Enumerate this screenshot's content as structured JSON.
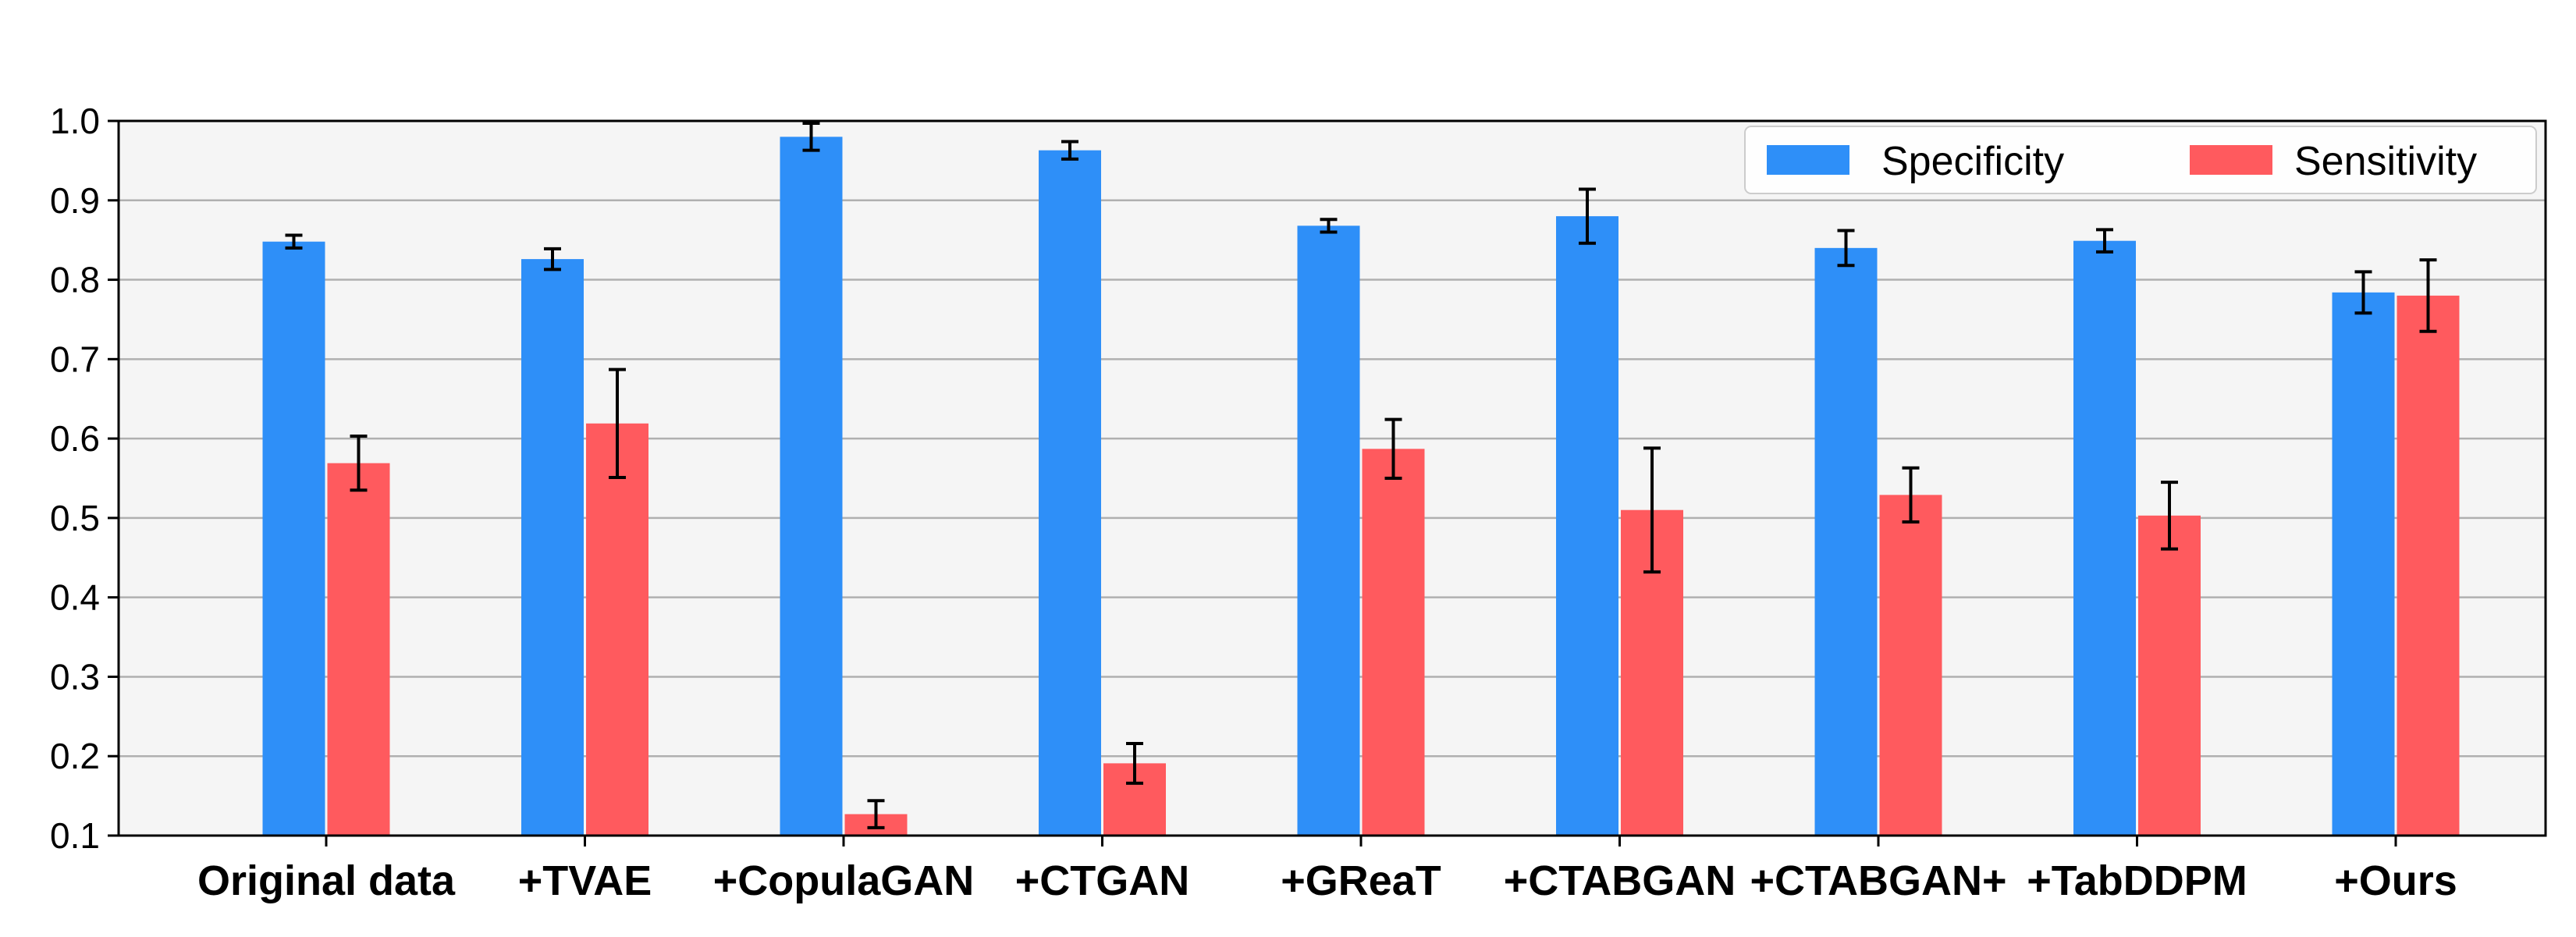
{
  "chart_data": {
    "type": "bar",
    "categories": [
      "Original data",
      "+TVAE",
      "+CopulaGAN",
      "+CTGAN",
      "+GReaT",
      "+CTABGAN",
      "+CTABGAN+",
      "+TabDDPM",
      "+Ours"
    ],
    "series": [
      {
        "name": "Specificity",
        "color": "#2e8ff8",
        "values": [
          0.848,
          0.826,
          0.98,
          0.963,
          0.868,
          0.88,
          0.84,
          0.849,
          0.784
        ],
        "errors": [
          0.008,
          0.013,
          0.017,
          0.011,
          0.008,
          0.034,
          0.022,
          0.014,
          0.026
        ]
      },
      {
        "name": "Sensitivity",
        "color": "#ff5a5e",
        "values": [
          0.569,
          0.619,
          0.127,
          0.191,
          0.587,
          0.51,
          0.529,
          0.503,
          0.78
        ],
        "errors": [
          0.034,
          0.068,
          0.017,
          0.025,
          0.037,
          0.078,
          0.034,
          0.042,
          0.045
        ]
      }
    ],
    "title": "",
    "xlabel": "",
    "ylabel": "",
    "ylim": [
      0.1,
      1.0
    ],
    "yticks": [
      "0.1",
      "0.2",
      "0.3",
      "0.4",
      "0.5",
      "0.6",
      "0.7",
      "0.8",
      "0.9",
      "1.0"
    ],
    "grid": "horizontal",
    "legend": "top-right",
    "background": "#f5f5f5",
    "grid_color": "#b0b0b0"
  }
}
